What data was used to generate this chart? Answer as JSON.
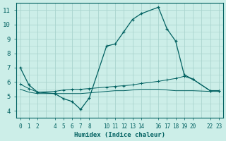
{
  "xlabel": "Humidex (Indice chaleur)",
  "background_color": "#cceee8",
  "grid_color": "#aad4ce",
  "line_color": "#006060",
  "xlim": [
    -0.5,
    23.5
  ],
  "ylim": [
    3.5,
    11.5
  ],
  "yticks": [
    4,
    5,
    6,
    7,
    8,
    9,
    10,
    11
  ],
  "xtick_positions": [
    0,
    1,
    2,
    4,
    5,
    6,
    7,
    8,
    10,
    11,
    12,
    13,
    14,
    16,
    17,
    18,
    19,
    20,
    22,
    23
  ],
  "xtick_labels": [
    "0",
    "1",
    "2",
    "4",
    "5",
    "6",
    "7",
    "8",
    "10",
    "11",
    "12",
    "13",
    "14",
    "16",
    "17",
    "18",
    "19",
    "20",
    "22",
    "23"
  ],
  "series1": [
    [
      0,
      7.0
    ],
    [
      1,
      5.8
    ],
    [
      2,
      5.3
    ],
    [
      4,
      5.2
    ],
    [
      5,
      4.85
    ],
    [
      6,
      4.65
    ],
    [
      7,
      4.1
    ],
    [
      8,
      4.9
    ],
    [
      10,
      8.5
    ],
    [
      11,
      8.65
    ],
    [
      12,
      9.5
    ],
    [
      13,
      10.35
    ],
    [
      14,
      10.75
    ],
    [
      16,
      11.2
    ],
    [
      17,
      9.7
    ],
    [
      18,
      8.85
    ],
    [
      19,
      6.5
    ],
    [
      20,
      6.2
    ],
    [
      22,
      5.4
    ],
    [
      23,
      5.4
    ]
  ],
  "series2": [
    [
      0,
      5.85
    ],
    [
      1,
      5.55
    ],
    [
      2,
      5.3
    ],
    [
      4,
      5.35
    ],
    [
      5,
      5.45
    ],
    [
      6,
      5.5
    ],
    [
      7,
      5.5
    ],
    [
      8,
      5.55
    ],
    [
      10,
      5.65
    ],
    [
      11,
      5.7
    ],
    [
      12,
      5.75
    ],
    [
      13,
      5.8
    ],
    [
      14,
      5.9
    ],
    [
      16,
      6.05
    ],
    [
      17,
      6.15
    ],
    [
      18,
      6.25
    ],
    [
      19,
      6.4
    ],
    [
      20,
      6.2
    ],
    [
      22,
      5.4
    ],
    [
      23,
      5.4
    ]
  ],
  "series3": [
    [
      0,
      5.5
    ],
    [
      1,
      5.3
    ],
    [
      2,
      5.2
    ],
    [
      4,
      5.2
    ],
    [
      5,
      5.2
    ],
    [
      6,
      5.2
    ],
    [
      7,
      5.2
    ],
    [
      8,
      5.25
    ],
    [
      10,
      5.35
    ],
    [
      11,
      5.4
    ],
    [
      12,
      5.4
    ],
    [
      13,
      5.45
    ],
    [
      14,
      5.5
    ],
    [
      16,
      5.5
    ],
    [
      17,
      5.45
    ],
    [
      18,
      5.4
    ],
    [
      19,
      5.4
    ],
    [
      20,
      5.4
    ],
    [
      22,
      5.35
    ],
    [
      23,
      5.35
    ]
  ]
}
